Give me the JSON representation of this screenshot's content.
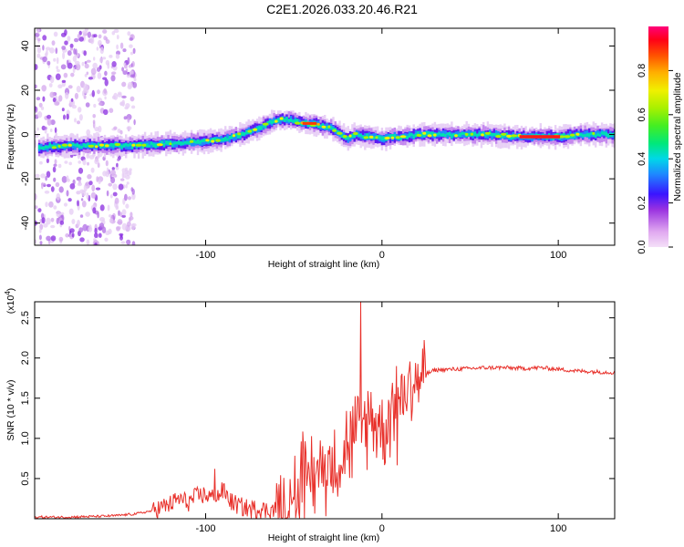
{
  "figure": {
    "title": "C2E1.2026.033.20.46.R21"
  },
  "chart_data": [
    {
      "type": "heatmap",
      "name": "spectrogram",
      "xlabel": "Height of straight line (km)",
      "ylabel": "Frequency (Hz)",
      "xlim": [
        -197,
        132
      ],
      "ylim": [
        -50,
        48
      ],
      "x_ticks": [
        -100,
        0,
        100
      ],
      "y_ticks": [
        -40,
        -20,
        0,
        20,
        40
      ],
      "colorbar": {
        "label": "Normalized spectral amplitude",
        "range": [
          0,
          1
        ],
        "ticks": [
          0.0,
          0.2,
          0.4,
          0.6,
          0.8
        ]
      },
      "ridge_frequency_hz": {
        "x": [
          -197,
          -180,
          -160,
          -140,
          -120,
          -100,
          -90,
          -80,
          -70,
          -62,
          -55,
          -50,
          -45,
          -40,
          -35,
          -30,
          -25,
          -20,
          -15,
          -10,
          -5,
          0,
          5,
          10,
          20,
          40,
          60,
          80,
          100,
          110,
          120,
          132
        ],
        "y": [
          -6,
          -5,
          -5,
          -5,
          -4,
          -3,
          -2,
          0,
          3,
          6,
          7,
          6,
          5,
          5,
          4,
          3,
          1,
          -2,
          0,
          -1,
          -1,
          -2,
          -1,
          -1,
          0,
          0,
          0,
          -1,
          -1,
          0,
          0,
          0
        ]
      },
      "band_thickness_hz": 6,
      "noise_regions_km": [
        [
          -197,
          -140
        ]
      ]
    },
    {
      "type": "line",
      "name": "snr",
      "xlabel": "Height of straight line (km)",
      "ylabel": "SNR (10 * v/v)",
      "y_multiplier": "(x10",
      "y_multiplier_exp": "4",
      "y_multiplier_close": ")",
      "xlim": [
        -197,
        132
      ],
      "ylim": [
        0,
        2.7
      ],
      "x_ticks": [
        -100,
        0,
        100
      ],
      "y_ticks": [
        0.5,
        1.0,
        1.5,
        2.0,
        2.5
      ],
      "y_tick_labels": [
        "0.5",
        "1.0",
        "1.5",
        "2.0",
        "2.5"
      ],
      "color": "#e8302a",
      "series": [
        {
          "name": "SNR",
          "x": [
            -197,
            -180,
            -160,
            -150,
            -140,
            -130,
            -120,
            -115,
            -110,
            -105,
            -100,
            -95,
            -90,
            -85,
            -80,
            -75,
            -70,
            -65,
            -60,
            -55,
            -50,
            -45,
            -40,
            -35,
            -30,
            -25,
            -20,
            -15,
            -12,
            -10,
            -5,
            0,
            5,
            10,
            15,
            20,
            25,
            30,
            40,
            50,
            60,
            70,
            80,
            90,
            100,
            110,
            120,
            132
          ],
          "y": [
            0.02,
            0.02,
            0.03,
            0.04,
            0.06,
            0.1,
            0.18,
            0.25,
            0.2,
            0.28,
            0.3,
            0.25,
            0.35,
            0.2,
            0.15,
            0.12,
            0.12,
            0.1,
            0.12,
            0.15,
            0.35,
            0.5,
            0.55,
            0.6,
            0.7,
            0.75,
            0.9,
            1.05,
            1.1,
            1.2,
            1.3,
            1.1,
            1.35,
            1.5,
            1.65,
            1.75,
            1.8,
            1.85,
            1.86,
            1.87,
            1.88,
            1.88,
            1.87,
            1.88,
            1.86,
            1.84,
            1.83,
            1.82
          ]
        }
      ],
      "spikes": [
        {
          "x": -12,
          "y": 2.7
        },
        {
          "x": -95,
          "y": 0.62
        },
        {
          "x": 8,
          "y": 1.9
        }
      ]
    }
  ]
}
